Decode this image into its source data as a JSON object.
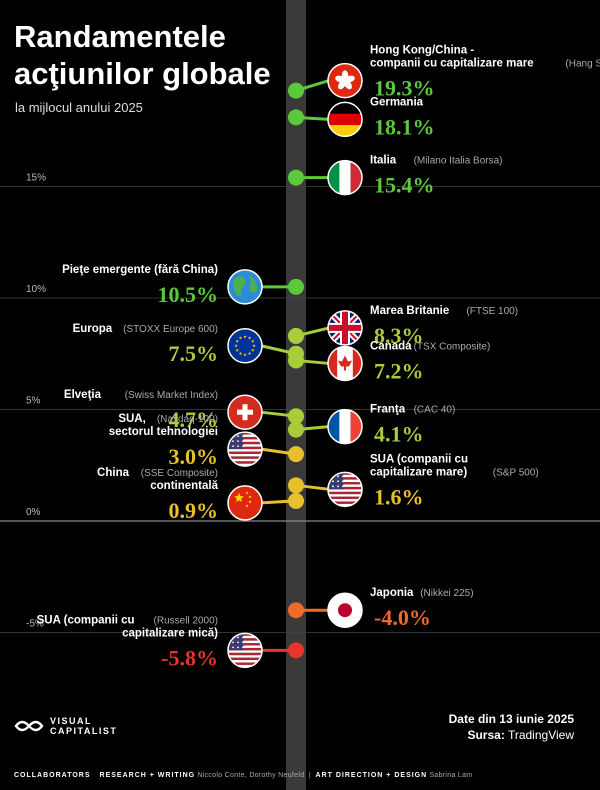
{
  "header": {
    "title_line1": "Randamentele",
    "title_line2": "acţiunilor globale",
    "subtitle": "la mijlocul anului 2025"
  },
  "footer": {
    "date": "Date din 13 iunie 2025",
    "source_label": "Sursa:",
    "source_value": "TradingView",
    "brand_line1": "VISUAL",
    "brand_line2": "CAPITALIST",
    "collaborators": "COLLABORATORS",
    "research_label": "RESEARCH + WRITING",
    "research_names": "Niccolo Conte, Dorothy Neufeld",
    "design_label": "ART DIRECTION + DESIGN",
    "design_names": "Sabrina Lam"
  },
  "colors": {
    "background": "#000000",
    "positive_high": "#5cc93a",
    "positive_mid": "#a8cc3a",
    "positive_low": "#e8c02c",
    "negative_mid": "#f06a2a",
    "negative_high": "#e8342a",
    "axis_band": "#3a3a3a",
    "gridline": "#444444",
    "zero_line": "#888888"
  },
  "chart_data": {
    "type": "scatter",
    "ylim": [
      -7,
      21
    ],
    "y_ticks": [
      {
        "value": 15,
        "label": "15%"
      },
      {
        "value": 10,
        "label": "10%"
      },
      {
        "value": 5,
        "label": "5%"
      },
      {
        "value": 0,
        "label": "0%"
      },
      {
        "value": -5,
        "label": "-5%"
      }
    ],
    "grid": true,
    "points": [
      {
        "name": "Hong Kong/China -\ncompanii cu capitalizare mare",
        "index": "(Hang Seng)",
        "value": 19.3,
        "label": "19.3%",
        "side": "right",
        "flag": "hong-kong-flag"
      },
      {
        "name": "Germania",
        "index": "",
        "value": 18.1,
        "label": "18.1%",
        "side": "right",
        "flag": "germany-flag"
      },
      {
        "name": "Italia",
        "index": "(Milano Italia Borsa)",
        "value": 15.4,
        "label": "15.4%",
        "side": "right",
        "flag": "italy-flag"
      },
      {
        "name": "Pieţe emergente (fără China)",
        "index": "",
        "value": 10.5,
        "label": "10.5%",
        "side": "left",
        "flag": "globe-icon"
      },
      {
        "name": "Marea Britanie",
        "index": "(FTSE 100)",
        "value": 8.3,
        "label": "8.3%",
        "side": "right",
        "flag": "uk-flag"
      },
      {
        "name": "Europa",
        "index": "(STOXX Europe 600)",
        "value": 7.5,
        "label": "7.5%",
        "side": "left",
        "flag": "eu-flag"
      },
      {
        "name": "Canada",
        "index": "(TSX Composite)",
        "value": 7.2,
        "label": "7.2%",
        "side": "right",
        "flag": "canada-flag"
      },
      {
        "name": "Elveţia",
        "index": "(Swiss Market Index)",
        "value": 4.7,
        "label": "4.7%",
        "side": "left",
        "flag": "switzerland-flag"
      },
      {
        "name": "Franţa",
        "index": "(CAC 40)",
        "value": 4.1,
        "label": "4.1%",
        "side": "right",
        "flag": "france-flag"
      },
      {
        "name": "SUA,\nsectorul tehnologiei",
        "index": "(Nasdaq-100)",
        "value": 3.0,
        "label": "3.0%",
        "side": "left",
        "flag": "usa-flag"
      },
      {
        "name": "SUA (companii cu\ncapitalizare mare)",
        "index": "(S&P 500)",
        "value": 1.6,
        "label": "1.6%",
        "side": "right",
        "flag": "usa-flag"
      },
      {
        "name": "China\ncontinentală",
        "index": "(SSE Composite)",
        "value": 0.9,
        "label": "0.9%",
        "side": "left",
        "flag": "china-flag"
      },
      {
        "name": "Japonia",
        "index": "(Nikkei 225)",
        "value": -4.0,
        "label": "-4.0%",
        "side": "right",
        "flag": "japan-flag"
      },
      {
        "name": "SUA (companii cu\ncapitalizare mică)",
        "index": "(Russell 2000)",
        "value": -5.8,
        "label": "-5.8%",
        "side": "left",
        "flag": "usa-flag"
      }
    ]
  }
}
